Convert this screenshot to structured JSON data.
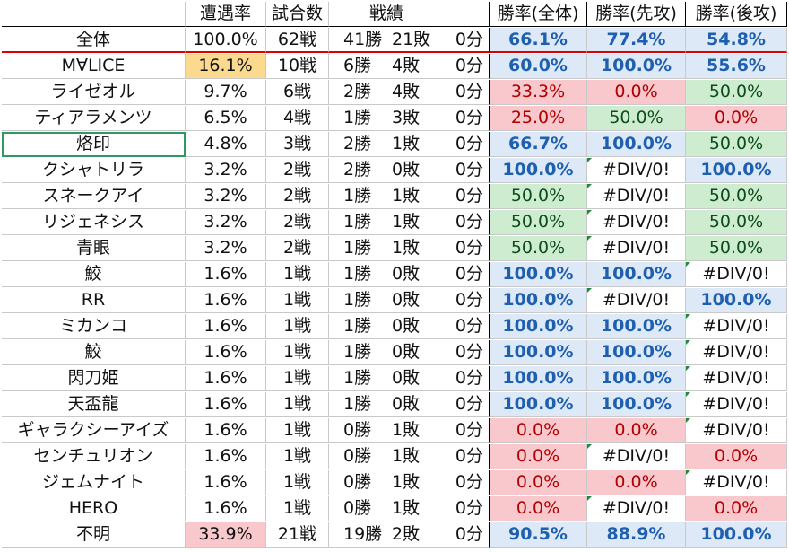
{
  "header": {
    "name": "",
    "rate": "遭遇率",
    "games": "試合数",
    "record": "戦績",
    "winrate_all": "勝率(全体)",
    "winrate_first": "勝率(先攻)",
    "winrate_second": "勝率(後攻)"
  },
  "colors": {
    "blue_text": "#1f5fb0",
    "blue_fill": "#dde9f6",
    "red_text": "#b00000",
    "red_fill": "#f8c8cd",
    "green_fill": "#cdecd0",
    "highlight_yellow": "#fbd98e",
    "selection_border": "#2e9a62",
    "total_underline": "#e00000"
  },
  "total": {
    "name": "全体",
    "rate": "100.0%",
    "games": "62戦",
    "wins": "41勝",
    "losses": "21敗",
    "draws": "0分",
    "all": "66.1%",
    "first": "77.4%",
    "second": "54.8%",
    "all_style": "blue",
    "first_style": "blue",
    "second_style": "blue"
  },
  "rows": [
    {
      "name": "M∀LICE",
      "rate": "16.1%",
      "rate_style": "yellow",
      "games": "10戦",
      "wins": "6勝",
      "losses": "4敗",
      "draws": "0分",
      "all": "60.0%",
      "all_style": "blue",
      "first": "100.0%",
      "first_style": "blue",
      "second": "55.6%",
      "second_style": "blue"
    },
    {
      "name": "ライゼオル",
      "rate": "9.7%",
      "games": "6戦",
      "wins": "2勝",
      "losses": "4敗",
      "draws": "0分",
      "all": "33.3%",
      "all_style": "red",
      "first": "0.0%",
      "first_style": "red",
      "second": "50.0%",
      "second_style": "green"
    },
    {
      "name": "ティアラメンツ",
      "rate": "6.5%",
      "games": "4戦",
      "wins": "1勝",
      "losses": "3敗",
      "draws": "0分",
      "all": "25.0%",
      "all_style": "red",
      "first": "50.0%",
      "first_style": "green",
      "second": "0.0%",
      "second_style": "red"
    },
    {
      "name": "烙印",
      "selected": true,
      "rate": "4.8%",
      "games": "3戦",
      "wins": "2勝",
      "losses": "1敗",
      "draws": "0分",
      "all": "66.7%",
      "all_style": "blue",
      "first": "100.0%",
      "first_style": "blue",
      "second": "50.0%",
      "second_style": "green"
    },
    {
      "name": "クシャトリラ",
      "rate": "3.2%",
      "games": "2戦",
      "wins": "2勝",
      "losses": "0敗",
      "draws": "0分",
      "all": "100.0%",
      "all_style": "blue",
      "first": "#DIV/0!",
      "first_style": "white",
      "first_flag": true,
      "second": "100.0%",
      "second_style": "blue"
    },
    {
      "name": "スネークアイ",
      "rate": "3.2%",
      "games": "2戦",
      "wins": "1勝",
      "losses": "1敗",
      "draws": "0分",
      "all": "50.0%",
      "all_style": "green",
      "first": "#DIV/0!",
      "first_style": "white",
      "first_flag": true,
      "second": "50.0%",
      "second_style": "green"
    },
    {
      "name": "リジェネシス",
      "rate": "3.2%",
      "games": "2戦",
      "wins": "1勝",
      "losses": "1敗",
      "draws": "0分",
      "all": "50.0%",
      "all_style": "green",
      "first": "#DIV/0!",
      "first_style": "white",
      "first_flag": true,
      "second": "50.0%",
      "second_style": "green"
    },
    {
      "name": "青眼",
      "rate": "3.2%",
      "games": "2戦",
      "wins": "1勝",
      "losses": "1敗",
      "draws": "0分",
      "all": "50.0%",
      "all_style": "green",
      "first": "#DIV/0!",
      "first_style": "white",
      "first_flag": true,
      "second": "50.0%",
      "second_style": "green"
    },
    {
      "name": "鮫",
      "rate": "1.6%",
      "games": "1戦",
      "wins": "1勝",
      "losses": "0敗",
      "draws": "0分",
      "all": "100.0%",
      "all_style": "blue",
      "first": "100.0%",
      "first_style": "blue",
      "second": "#DIV/0!",
      "second_style": "white",
      "second_flag": true
    },
    {
      "name": "RR",
      "rate": "1.6%",
      "games": "1戦",
      "wins": "1勝",
      "losses": "0敗",
      "draws": "0分",
      "all": "100.0%",
      "all_style": "blue",
      "first": "#DIV/0!",
      "first_style": "white",
      "first_flag": true,
      "second": "100.0%",
      "second_style": "blue"
    },
    {
      "name": "ミカンコ",
      "rate": "1.6%",
      "games": "1戦",
      "wins": "1勝",
      "losses": "0敗",
      "draws": "0分",
      "all": "100.0%",
      "all_style": "blue",
      "first": "100.0%",
      "first_style": "blue",
      "second": "#DIV/0!",
      "second_style": "white",
      "second_flag": true
    },
    {
      "name": "鮫",
      "rate": "1.6%",
      "games": "1戦",
      "wins": "1勝",
      "losses": "0敗",
      "draws": "0分",
      "all": "100.0%",
      "all_style": "blue",
      "first": "100.0%",
      "first_style": "blue",
      "second": "#DIV/0!",
      "second_style": "white",
      "second_flag": true
    },
    {
      "name": "閃刀姫",
      "rate": "1.6%",
      "games": "1戦",
      "wins": "1勝",
      "losses": "0敗",
      "draws": "0分",
      "all": "100.0%",
      "all_style": "blue",
      "first": "100.0%",
      "first_style": "blue",
      "second": "#DIV/0!",
      "second_style": "white",
      "second_flag": true
    },
    {
      "name": "天盃龍",
      "rate": "1.6%",
      "games": "1戦",
      "wins": "1勝",
      "losses": "0敗",
      "draws": "0分",
      "all": "100.0%",
      "all_style": "blue",
      "first": "100.0%",
      "first_style": "blue",
      "second": "#DIV/0!",
      "second_style": "white",
      "second_flag": true
    },
    {
      "name": "ギャラクシーアイズ",
      "rate": "1.6%",
      "games": "1戦",
      "wins": "0勝",
      "losses": "1敗",
      "draws": "0分",
      "all": "0.0%",
      "all_style": "red",
      "first": "0.0%",
      "first_style": "red",
      "second": "#DIV/0!",
      "second_style": "white",
      "second_flag": true
    },
    {
      "name": "センチュリオン",
      "rate": "1.6%",
      "games": "1戦",
      "wins": "0勝",
      "losses": "1敗",
      "draws": "0分",
      "all": "0.0%",
      "all_style": "red",
      "first": "#DIV/0!",
      "first_style": "white",
      "first_flag": true,
      "second": "0.0%",
      "second_style": "red"
    },
    {
      "name": "ジェムナイト",
      "rate": "1.6%",
      "games": "1戦",
      "wins": "0勝",
      "losses": "1敗",
      "draws": "0分",
      "all": "0.0%",
      "all_style": "red",
      "first": "0.0%",
      "first_style": "red",
      "second": "#DIV/0!",
      "second_style": "white",
      "second_flag": true
    },
    {
      "name": "HERO",
      "rate": "1.6%",
      "games": "1戦",
      "wins": "0勝",
      "losses": "1敗",
      "draws": "0分",
      "all": "0.0%",
      "all_style": "red",
      "first": "#DIV/0!",
      "first_style": "white",
      "first_flag": true,
      "second": "0.0%",
      "second_style": "red"
    },
    {
      "name": "不明",
      "rate": "33.9%",
      "rate_style": "redbg",
      "games": "21戦",
      "wins": "19勝",
      "losses": "2敗",
      "draws": "0分",
      "all": "90.5%",
      "all_style": "blue",
      "first": "88.9%",
      "first_style": "blue",
      "second": "100.0%",
      "second_style": "blue"
    }
  ]
}
